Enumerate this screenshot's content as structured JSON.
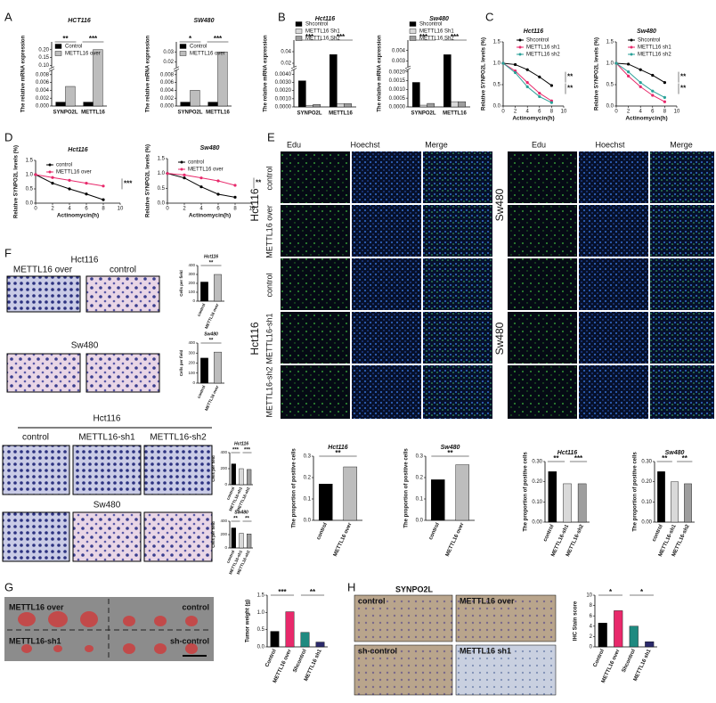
{
  "figure": {
    "panel_labels": [
      "A",
      "B",
      "C",
      "D",
      "E",
      "F",
      "G",
      "H"
    ],
    "e_headers": [
      "Edu",
      "Hoechst",
      "Merge",
      "Edu",
      "Hoechst",
      "Merge"
    ],
    "e_left_labels": [
      "Hct116",
      "control",
      "METTL16 over",
      "control",
      "METTL16-sh1",
      "METTL16-sh2",
      "Hct116"
    ],
    "e_right_labels": [
      "Sw480",
      "Sw480"
    ],
    "f_labels": [
      "Hct116",
      "METTL16 over",
      "control",
      "Sw480",
      "Hct116",
      "control",
      "METTL16-sh1",
      "METTL16-sh2",
      "Sw480"
    ],
    "g_labels": [
      "METTL16 over",
      "control",
      "METTL16-sh1",
      "sh-control"
    ],
    "h_title": "SYNPO2L",
    "h_labels": [
      "control",
      "METTL16 over",
      "sh-control",
      "METTL16 sh1"
    ]
  },
  "chart_data": [
    {
      "type": "bar",
      "title": "HCT116",
      "ylabel": "The relative mRNA expression",
      "categories": [
        "SYNPO2L",
        "METTL16"
      ],
      "series": [
        {
          "name": "Control",
          "color": "#000000",
          "values": [
            0.001,
            0.001
          ]
        },
        {
          "name": "METTL16 over",
          "color": "#bdbdbd",
          "values": [
            0.005,
            0.2
          ]
        }
      ],
      "ylim": [
        0,
        0.25
      ],
      "ybreak": [
        0.009,
        0.09
      ],
      "yticks": [
        {
          "value": 0,
          "label": "0.000"
        },
        {
          "value": 0.002,
          "label": "0.002"
        },
        {
          "value": 0.004,
          "label": "0.004"
        },
        {
          "value": 0.006,
          "label": "0.006"
        },
        {
          "value": 0.008,
          "label": "0.008"
        },
        {
          "value": 0.1,
          "label": "0.10"
        },
        {
          "value": 0.15,
          "label": "0.15"
        },
        {
          "value": 0.2,
          "label": "0.20"
        }
      ],
      "annotations": [
        "**",
        "***"
      ]
    },
    {
      "type": "bar",
      "title": "SW480",
      "ylabel": "The relative mRNA expression",
      "categories": [
        "SYNPO2L",
        "METTL16"
      ],
      "series": [
        {
          "name": "Control",
          "color": "#000000",
          "values": [
            0.001,
            0.001
          ]
        },
        {
          "name": "METTL16 over",
          "color": "#bdbdbd",
          "values": [
            0.004,
            0.03
          ]
        }
      ],
      "ylim": [
        0,
        0.04
      ],
      "ybreak": [
        0.009,
        0.015
      ],
      "yticks": [
        {
          "value": 0,
          "label": "0.000"
        },
        {
          "value": 0.002,
          "label": "0.002"
        },
        {
          "value": 0.004,
          "label": "0.004"
        },
        {
          "value": 0.006,
          "label": "0.006"
        },
        {
          "value": 0.008,
          "label": "0.008"
        },
        {
          "value": 0.02,
          "label": "0.02"
        },
        {
          "value": 0.03,
          "label": "0.03"
        }
      ],
      "annotations": [
        "*",
        "***"
      ]
    },
    {
      "type": "bar",
      "title": "Hct116",
      "ylabel": "The relative mRNA expression",
      "categories": [
        "SYNPO2L",
        "METTL16"
      ],
      "series": [
        {
          "name": "Shcontrol",
          "color": "#000000",
          "values": [
            0.0032,
            0.035
          ]
        },
        {
          "name": "METTL16 Sh1",
          "color": "#d9d9d9",
          "values": [
            0.0002,
            0.0004
          ]
        },
        {
          "name": "METTL16 Sh2",
          "color": "#9e9e9e",
          "values": [
            0.0003,
            0.0004
          ]
        }
      ],
      "ylim": [
        0,
        0.06
      ],
      "ybreak": [
        0.0045,
        0.015
      ],
      "yticks": [
        {
          "value": 0,
          "label": "0.0000"
        },
        {
          "value": 0.001,
          "label": "0.0010"
        },
        {
          "value": 0.002,
          "label": "0.0020"
        },
        {
          "value": 0.003,
          "label": "0.0030"
        },
        {
          "value": 0.004,
          "label": "0.0040"
        },
        {
          "value": 0.02,
          "label": "0.02"
        },
        {
          "value": 0.04,
          "label": "0.04"
        }
      ],
      "annotations": [
        "***",
        "***"
      ]
    },
    {
      "type": "bar",
      "title": "Sw480",
      "ylabel": "The relative mRNA expression",
      "categories": [
        "SYNPO2L",
        "METTL16"
      ],
      "series": [
        {
          "name": "Shcontrol",
          "color": "#000000",
          "values": [
            0.0014,
            0.0036
          ]
        },
        {
          "name": "METTL16 Sh1",
          "color": "#d9d9d9",
          "values": [
            0.0001,
            0.0003
          ]
        },
        {
          "name": "METTL16 Sh2",
          "color": "#9e9e9e",
          "values": [
            0.0002,
            0.0003
          ]
        }
      ],
      "ylim": [
        0,
        0.005
      ],
      "ybreak": [
        0.0021,
        0.0025
      ],
      "yticks": [
        {
          "value": 0,
          "label": "0.0000"
        },
        {
          "value": 0.0005,
          "label": "0.0005"
        },
        {
          "value": 0.001,
          "label": "0.0010"
        },
        {
          "value": 0.0015,
          "label": "0.0015"
        },
        {
          "value": 0.002,
          "label": "0.0020"
        },
        {
          "value": 0.003,
          "label": "0.003"
        },
        {
          "value": 0.004,
          "label": "0.004"
        }
      ],
      "annotations": [
        "***",
        "***"
      ]
    },
    {
      "type": "line",
      "title": "Hct116",
      "xlabel": "Actinomycin(h)",
      "ylabel": "Relative SYNPO2L levels (%)",
      "x": [
        0,
        2,
        4,
        6,
        8
      ],
      "xlim": [
        0,
        10
      ],
      "xticks": [
        0,
        2,
        4,
        6,
        8,
        10
      ],
      "ylim": [
        0,
        1.5
      ],
      "yticks": [
        {
          "value": 0,
          "label": "0.0"
        },
        {
          "value": 0.5,
          "label": "0.5"
        },
        {
          "value": 1,
          "label": "1.0"
        },
        {
          "value": 1.5,
          "label": "1.5"
        }
      ],
      "series": [
        {
          "name": "Shcontrol",
          "color": "#000000",
          "values": [
            1,
            0.97,
            0.85,
            0.68,
            0.48
          ]
        },
        {
          "name": "METTL16 sh1",
          "color": "#e8296b",
          "values": [
            1,
            0.82,
            0.55,
            0.3,
            0.12
          ]
        },
        {
          "name": "METTL16 sh2",
          "color": "#2aa198",
          "values": [
            1,
            0.78,
            0.45,
            0.22,
            0.08
          ]
        }
      ],
      "annotations": [
        "**",
        "**"
      ]
    },
    {
      "type": "line",
      "title": "Sw480",
      "xlabel": "Actinomycin(h)",
      "ylabel": "Relative SYNPO2L levels (%)",
      "x": [
        0,
        2,
        4,
        6,
        8
      ],
      "xlim": [
        0,
        10
      ],
      "xticks": [
        0,
        2,
        4,
        6,
        8,
        10
      ],
      "ylim": [
        0,
        1.5
      ],
      "yticks": [
        {
          "value": 0,
          "label": "0.0"
        },
        {
          "value": 0.5,
          "label": "0.5"
        },
        {
          "value": 1,
          "label": "1.0"
        },
        {
          "value": 1.5,
          "label": "1.5"
        }
      ],
      "series": [
        {
          "name": "Shcontrol",
          "color": "#000000",
          "values": [
            1,
            0.98,
            0.85,
            0.72,
            0.55
          ]
        },
        {
          "name": "METTL16 sh1",
          "color": "#e8296b",
          "values": [
            1,
            0.7,
            0.45,
            0.25,
            0.1
          ]
        },
        {
          "name": "METTL16 sh2",
          "color": "#2aa198",
          "values": [
            1,
            0.8,
            0.55,
            0.35,
            0.2
          ]
        }
      ],
      "annotations": [
        "**",
        "**"
      ]
    },
    {
      "type": "line",
      "title": "Hct116",
      "xlabel": "Actinomycin(h)",
      "ylabel": "Relative SYNPO2L levels (%)",
      "x": [
        0,
        2,
        4,
        6,
        8
      ],
      "xlim": [
        0,
        10
      ],
      "xticks": [
        0,
        2,
        4,
        6,
        8,
        10
      ],
      "ylim": [
        0,
        1.5
      ],
      "yticks": [
        {
          "value": 0,
          "label": "0.0"
        },
        {
          "value": 0.5,
          "label": "0.5"
        },
        {
          "value": 1,
          "label": "1.0"
        },
        {
          "value": 1.5,
          "label": "1.5"
        }
      ],
      "series": [
        {
          "name": "control",
          "color": "#000000",
          "values": [
            1,
            0.7,
            0.5,
            0.32,
            0.12
          ]
        },
        {
          "name": "METTL16 over",
          "color": "#e8296b",
          "values": [
            1,
            0.9,
            0.8,
            0.7,
            0.6
          ]
        }
      ],
      "annotations": [
        "***"
      ]
    },
    {
      "type": "line",
      "title": "Sw480",
      "xlabel": "Actinomycin(h)",
      "ylabel": "Relative SYNPO2L levels (%)",
      "x": [
        0,
        2,
        4,
        6,
        8
      ],
      "xlim": [
        0,
        10
      ],
      "xticks": [
        0,
        2,
        4,
        6,
        8,
        10
      ],
      "ylim": [
        0,
        1.5
      ],
      "yticks": [
        {
          "value": 0,
          "label": "0.0"
        },
        {
          "value": 0.5,
          "label": "0.5"
        },
        {
          "value": 1,
          "label": "1.0"
        },
        {
          "value": 1.5,
          "label": "1.5"
        }
      ],
      "series": [
        {
          "name": "control",
          "color": "#000000",
          "values": [
            1,
            0.85,
            0.55,
            0.3,
            0.2
          ]
        },
        {
          "name": "METTL16 over",
          "color": "#e8296b",
          "values": [
            1,
            0.95,
            0.85,
            0.75,
            0.6
          ]
        }
      ],
      "annotations": [
        "**"
      ]
    },
    {
      "type": "bar",
      "title": "Hct116",
      "ylabel": "The proportion of positive cells",
      "categories": [
        "control",
        "METTL16 over"
      ],
      "values": [
        0.17,
        0.25
      ],
      "colors": [
        "#000000",
        "#bdbdbd"
      ],
      "ylim": [
        0,
        0.3
      ],
      "yticks": [
        {
          "value": 0,
          "label": "0.0"
        },
        {
          "value": 0.1,
          "label": "0.1"
        },
        {
          "value": 0.2,
          "label": "0.2"
        },
        {
          "value": 0.3,
          "label": "0.3"
        }
      ],
      "annotations": [
        "**"
      ]
    },
    {
      "type": "bar",
      "title": "Sw480",
      "ylabel": "The proportion of positive cells",
      "categories": [
        "control",
        "METTL16 over"
      ],
      "values": [
        0.19,
        0.26
      ],
      "colors": [
        "#000000",
        "#bdbdbd"
      ],
      "ylim": [
        0,
        0.3
      ],
      "yticks": [
        {
          "value": 0,
          "label": "0.0"
        },
        {
          "value": 0.1,
          "label": "0.1"
        },
        {
          "value": 0.2,
          "label": "0.2"
        },
        {
          "value": 0.3,
          "label": "0.3"
        }
      ],
      "annotations": [
        "**"
      ]
    },
    {
      "type": "bar",
      "title": "Hct116",
      "ylabel": "The proportion of positive cells",
      "categories": [
        "control",
        "METTL16-sh1",
        "METTL16-sh2"
      ],
      "values": [
        0.25,
        0.19,
        0.19
      ],
      "colors": [
        "#000000",
        "#d9d9d9",
        "#9e9e9e"
      ],
      "ylim": [
        0,
        0.3
      ],
      "yticks": [
        {
          "value": 0,
          "label": "0.00"
        },
        {
          "value": 0.1,
          "label": "0.10"
        },
        {
          "value": 0.2,
          "label": "0.20"
        },
        {
          "value": 0.3,
          "label": "0.30"
        }
      ],
      "annotations": [
        "**",
        "***"
      ]
    },
    {
      "type": "bar",
      "title": "Sw480",
      "ylabel": "The proportion of positive cells",
      "categories": [
        "control",
        "METTL16-sh1",
        "METTL16-sh2"
      ],
      "values": [
        0.25,
        0.2,
        0.19
      ],
      "colors": [
        "#000000",
        "#d9d9d9",
        "#9e9e9e"
      ],
      "ylim": [
        0,
        0.3
      ],
      "yticks": [
        {
          "value": 0,
          "label": "0.00"
        },
        {
          "value": 0.1,
          "label": "0.10"
        },
        {
          "value": 0.2,
          "label": "0.20"
        },
        {
          "value": 0.3,
          "label": "0.30"
        }
      ],
      "annotations": [
        "**",
        "**"
      ]
    },
    {
      "type": "bar",
      "title": "Hct116",
      "ylabel": "Cells per field",
      "categories": [
        "control",
        "METTL16 over"
      ],
      "values": [
        215,
        300
      ],
      "colors": [
        "#000000",
        "#bdbdbd"
      ],
      "ylim": [
        0,
        400
      ],
      "yticks": [
        0,
        100,
        200,
        300,
        400
      ],
      "annotations": [
        "**"
      ]
    },
    {
      "type": "bar",
      "title": "Sw480",
      "ylabel": "Cells per field",
      "categories": [
        "control",
        "METTL16 over"
      ],
      "values": [
        250,
        310
      ],
      "colors": [
        "#000000",
        "#bdbdbd"
      ],
      "ylim": [
        0,
        400
      ],
      "yticks": [
        0,
        100,
        200,
        300,
        400
      ],
      "annotations": [
        "**"
      ]
    },
    {
      "type": "bar",
      "title": "Hct116",
      "ylabel": "Cells per field",
      "categories": [
        "control",
        "METTL16-sh1",
        "METTL16-sh2"
      ],
      "values": [
        260,
        200,
        190
      ],
      "colors": [
        "#000000",
        "#d9d9d9",
        "#9e9e9e"
      ],
      "ylim": [
        0,
        400
      ],
      "yticks": [
        0,
        200,
        400
      ],
      "annotations": [
        "***",
        "***"
      ]
    },
    {
      "type": "bar",
      "title": "Sw480",
      "ylabel": "Cells per field",
      "categories": [
        "control",
        "METTL16-sh1",
        "METTL16-sh2"
      ],
      "values": [
        300,
        220,
        210
      ],
      "colors": [
        "#000000",
        "#d9d9d9",
        "#9e9e9e"
      ],
      "ylim": [
        0,
        400
      ],
      "yticks": [
        0,
        200,
        400
      ],
      "annotations": [
        "**",
        "**"
      ]
    },
    {
      "type": "bar",
      "ylabel": "Tumor weight (g)",
      "categories": [
        "Control",
        "METTL16 over",
        "Shcontrol",
        "METTL16 sh1"
      ],
      "values": [
        0.45,
        1.02,
        0.42,
        0.14
      ],
      "colors": [
        "#000000",
        "#e8296b",
        "#1f8a80",
        "#2b2a6b"
      ],
      "ylim": [
        0,
        1.5
      ],
      "yticks": [
        {
          "value": 0,
          "label": "0.0"
        },
        {
          "value": 0.5,
          "label": "0.5"
        },
        {
          "value": 1,
          "label": "1.0"
        },
        {
          "value": 1.5,
          "label": "1.5"
        }
      ],
      "annotations": [
        "***",
        "**"
      ]
    },
    {
      "type": "bar",
      "ylabel": "IHC Stain score",
      "categories": [
        "Control",
        "METTL16 over",
        "Shcontrol",
        "METTL16 sh1"
      ],
      "values": [
        4.6,
        7,
        4,
        1
      ],
      "colors": [
        "#000000",
        "#e8296b",
        "#1f8a80",
        "#2b2a6b"
      ],
      "ylim": [
        0,
        10
      ],
      "yticks": [
        0,
        2,
        4,
        6,
        8,
        10
      ],
      "annotations": [
        "*",
        "*"
      ]
    }
  ]
}
